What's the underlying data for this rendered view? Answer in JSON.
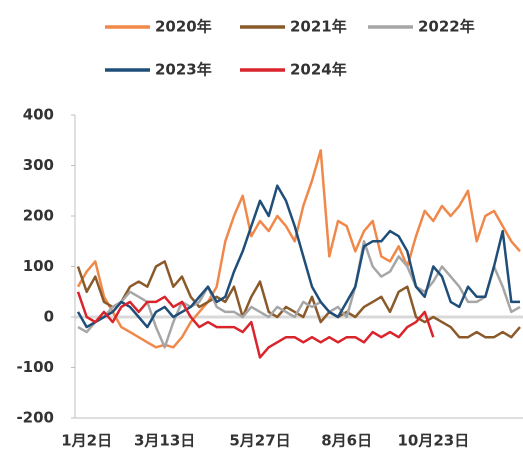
{
  "chart_data": {
    "type": "line",
    "categories": [
      null,
      "1月2日",
      null,
      null,
      null,
      null,
      null,
      null,
      null,
      null,
      "3月13日",
      null,
      null,
      null,
      null,
      null,
      null,
      null,
      null,
      null,
      null,
      "5月27日",
      null,
      null,
      null,
      null,
      null,
      null,
      null,
      null,
      null,
      "8月6日",
      null,
      null,
      null,
      null,
      null,
      null,
      null,
      null,
      null,
      "10月23日",
      null,
      null,
      null,
      null,
      null,
      null,
      null,
      null,
      null,
      null
    ],
    "series": [
      {
        "name": "2020年",
        "color": "#f0884a",
        "values": [
          60,
          90,
          110,
          40,
          10,
          -20,
          -30,
          -40,
          -50,
          -60,
          -55,
          -60,
          -40,
          -10,
          10,
          30,
          60,
          150,
          200,
          240,
          160,
          190,
          170,
          200,
          180,
          150,
          220,
          270,
          330,
          120,
          190,
          180,
          130,
          170,
          190,
          120,
          110,
          140,
          100,
          160,
          210,
          190,
          220,
          200,
          220,
          250,
          150,
          200,
          210,
          180,
          150,
          130
        ]
      },
      {
        "name": "2021年",
        "color": "#8b5a2b",
        "values": [
          100,
          50,
          80,
          30,
          20,
          30,
          60,
          70,
          60,
          100,
          110,
          60,
          80,
          40,
          20,
          30,
          40,
          30,
          60,
          0,
          40,
          70,
          10,
          0,
          20,
          10,
          0,
          40,
          -10,
          10,
          0,
          10,
          0,
          20,
          30,
          40,
          10,
          50,
          60,
          0,
          -10,
          0,
          -10,
          -20,
          -40,
          -40,
          -30,
          -40,
          -40,
          -30,
          -40,
          -20
        ]
      },
      {
        "name": "2022年",
        "color": "#a6a6a6",
        "values": [
          -20,
          -30,
          -10,
          0,
          20,
          30,
          50,
          40,
          30,
          -20,
          -60,
          -10,
          30,
          20,
          30,
          60,
          20,
          10,
          10,
          0,
          20,
          10,
          0,
          20,
          10,
          0,
          30,
          20,
          30,
          10,
          20,
          0,
          60,
          150,
          100,
          80,
          90,
          120,
          100,
          60,
          50,
          70,
          100,
          80,
          60,
          30,
          30,
          40,
          100,
          60,
          10,
          20
        ]
      },
      {
        "name": "2023年",
        "color": "#1f4e79",
        "values": [
          10,
          -20,
          -10,
          0,
          10,
          30,
          20,
          0,
          -20,
          10,
          20,
          0,
          10,
          20,
          40,
          60,
          30,
          40,
          90,
          130,
          180,
          230,
          200,
          260,
          230,
          180,
          120,
          60,
          30,
          10,
          0,
          30,
          60,
          140,
          150,
          150,
          170,
          160,
          130,
          60,
          40,
          100,
          80,
          30,
          20,
          60,
          40,
          40,
          100,
          170,
          30,
          30
        ]
      },
      {
        "name": "2024年",
        "color": "#d9242b",
        "values": [
          50,
          0,
          -10,
          10,
          -10,
          20,
          30,
          10,
          30,
          30,
          40,
          20,
          30,
          0,
          -20,
          -10,
          -20,
          -20,
          -20,
          -30,
          -10,
          -80,
          -60,
          -50,
          -40,
          -40,
          -50,
          -40,
          -50,
          -40,
          -50,
          -40,
          -40,
          -50,
          -30,
          -40,
          -30,
          -40,
          -20,
          -10,
          10,
          -40,
          null,
          null,
          null,
          null,
          null,
          null,
          null,
          null,
          null,
          null
        ]
      }
    ],
    "ylim": [
      -200,
      400
    ],
    "yticks": [
      -200,
      -100,
      0,
      100,
      200,
      300,
      400
    ]
  }
}
